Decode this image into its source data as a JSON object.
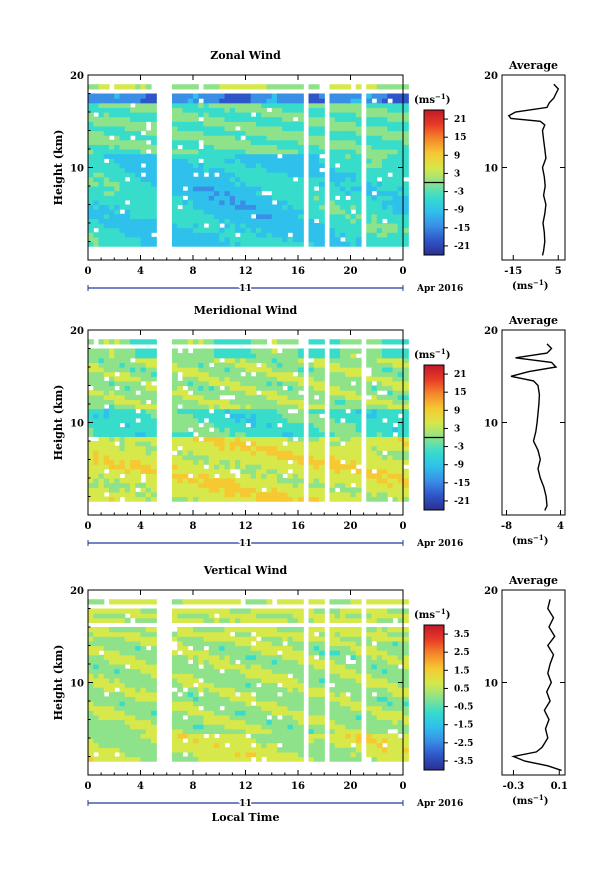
{
  "units": "(ms⁻¹)",
  "colorscale": [
    "#2b2f8f",
    "#2f55c8",
    "#3a8ee6",
    "#2fc0ec",
    "#38dccb",
    "#8ee28a",
    "#d6e84a",
    "#f6c832",
    "#f5882c",
    "#e83a26",
    "#c0192a"
  ],
  "chart_data": [
    {
      "type": "heatmap",
      "title": "Zonal Wind",
      "ylabel": "Height (km)",
      "xlabel": "",
      "x_ticks": [
        "0",
        "4",
        "8",
        "12",
        "16",
        "20",
        "0"
      ],
      "x_range": [
        0,
        24
      ],
      "y_ticks": [
        "20",
        "10"
      ],
      "y_range": [
        0,
        20
      ],
      "date_marker": "11",
      "date_label": "Apr 2016",
      "colorbar_ticks": [
        "21",
        "15",
        "9",
        "3",
        "-3",
        "-9",
        "-15",
        "-21"
      ],
      "colorbar_range": [
        -24,
        24
      ],
      "data_gaps_hours": [
        [
          5.0,
          6.5
        ],
        [
          16.3,
          16.7
        ],
        [
          18.0,
          18.4
        ],
        [
          20.6,
          21.1
        ]
      ],
      "profile": {
        "title": "Average",
        "x_ticks": [
          "-15",
          "5"
        ],
        "x_range": [
          -20,
          8
        ],
        "xlabel": "(ms⁻¹)",
        "y_ticks": [
          "20",
          "10"
        ],
        "height_km": [
          0.5,
          1,
          2,
          3,
          4,
          5,
          6,
          7,
          8,
          9,
          10,
          11,
          12,
          13,
          14,
          14.6,
          15,
          15.3,
          15.6,
          16,
          16.5,
          17,
          17.5,
          18,
          18.5,
          19
        ],
        "value": [
          -2,
          -1.5,
          -1,
          -1.2,
          -1.8,
          -1,
          -0.5,
          -1.5,
          -0.8,
          -1.2,
          -2,
          -0.5,
          -1,
          -1.5,
          -2,
          -1,
          -3,
          -16,
          -17,
          -14,
          0,
          1,
          3,
          4,
          5,
          3
        ]
      }
    },
    {
      "type": "heatmap",
      "title": "Meridional Wind",
      "ylabel": "Height (km)",
      "xlabel": "",
      "x_ticks": [
        "0",
        "4",
        "8",
        "12",
        "16",
        "20",
        "0"
      ],
      "x_range": [
        0,
        24
      ],
      "y_ticks": [
        "20",
        "10"
      ],
      "y_range": [
        0,
        20
      ],
      "date_marker": "11",
      "date_label": "Apr 2016",
      "colorbar_ticks": [
        "21",
        "15",
        "9",
        "3",
        "-3",
        "-9",
        "-15",
        "-21"
      ],
      "colorbar_range": [
        -24,
        24
      ],
      "data_gaps_hours": [
        [
          5.0,
          6.5
        ],
        [
          16.3,
          16.7
        ],
        [
          18.0,
          18.4
        ],
        [
          20.6,
          21.1
        ]
      ],
      "profile": {
        "title": "Average",
        "x_ticks": [
          "-8",
          "4"
        ],
        "x_range": [
          -9,
          5
        ],
        "xlabel": "(ms⁻¹)",
        "y_ticks": [
          "20",
          "10"
        ],
        "height_km": [
          0.5,
          1,
          2,
          3,
          4,
          5,
          6,
          7,
          8,
          9,
          10,
          11,
          12,
          13,
          14,
          14.5,
          15,
          15.5,
          16,
          16.5,
          17,
          17.5,
          18,
          18.5
        ],
        "value": [
          0.5,
          1,
          0.8,
          0.3,
          -0.5,
          -1,
          -0.5,
          -1,
          -2,
          -1.5,
          -1.2,
          -1,
          -0.8,
          -0.7,
          -1,
          -2,
          -7,
          -3,
          3,
          2,
          -6,
          1,
          2,
          1
        ]
      }
    },
    {
      "type": "heatmap",
      "title": "Vertical Wind",
      "ylabel": "Height (km)",
      "xlabel": "Local Time",
      "x_ticks": [
        "0",
        "4",
        "8",
        "12",
        "16",
        "20",
        "0"
      ],
      "x_range": [
        0,
        24
      ],
      "y_ticks": [
        "20",
        "10"
      ],
      "y_range": [
        0,
        20
      ],
      "date_marker": "11",
      "date_label": "Apr 2016",
      "colorbar_ticks": [
        "3.5",
        "2.5",
        "1.5",
        "0.5",
        "-0.5",
        "-1.5",
        "-2.5",
        "-3.5"
      ],
      "colorbar_range": [
        -4,
        4
      ],
      "data_gaps_hours": [
        [
          5.0,
          6.5
        ],
        [
          16.3,
          16.7
        ],
        [
          18.0,
          18.4
        ],
        [
          20.6,
          21.1
        ]
      ],
      "profile": {
        "title": "Average",
        "x_ticks": [
          "-0.3",
          "0.1"
        ],
        "x_range": [
          -0.4,
          0.15
        ],
        "xlabel": "(ms⁻¹)",
        "y_ticks": [
          "20",
          "10"
        ],
        "height_km": [
          0.5,
          1,
          1.5,
          2,
          2.5,
          3,
          4,
          5,
          6,
          7,
          8,
          9,
          10,
          11,
          12,
          13,
          14,
          15,
          16,
          17,
          18,
          19
        ],
        "value": [
          0.12,
          0.0,
          -0.2,
          -0.3,
          -0.1,
          -0.05,
          0.0,
          -0.02,
          0.01,
          -0.03,
          0.02,
          -0.01,
          0.03,
          0.0,
          0.02,
          0.05,
          0.0,
          0.06,
          0.01,
          0.05,
          0.0,
          0.02
        ]
      }
    }
  ]
}
